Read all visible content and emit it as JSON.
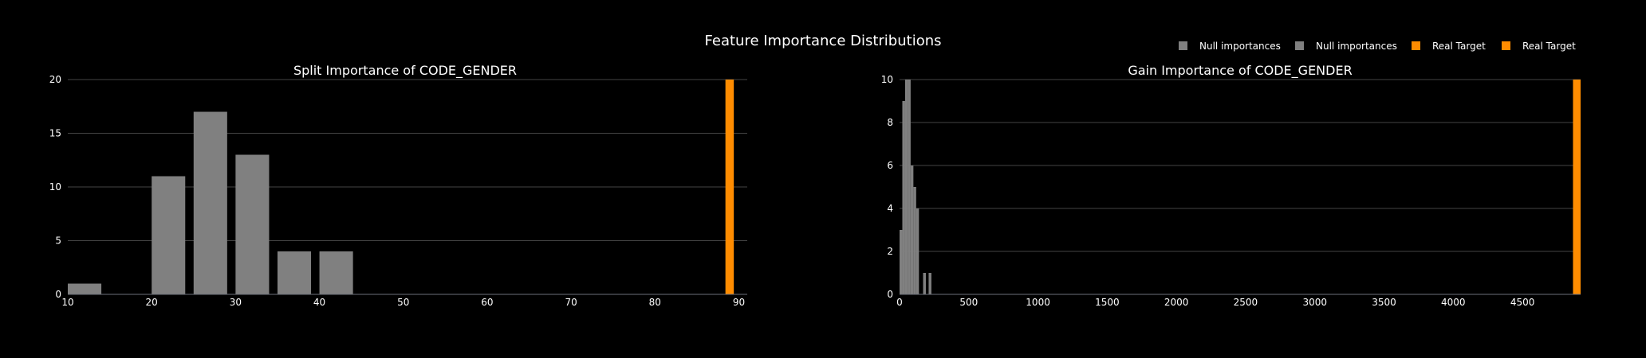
{
  "figure": {
    "title": "Feature Importance Distributions"
  },
  "legend": [
    {
      "label": "Null importances",
      "color": "#808080"
    },
    {
      "label": "Null importances",
      "color": "#808080"
    },
    {
      "label": "Real Target",
      "color": "#ff8c00"
    },
    {
      "label": "Real Target",
      "color": "#ff8c00"
    }
  ],
  "chart_data": [
    {
      "type": "bar",
      "title": "Split Importance of CODE_GENDER",
      "xlabel": "",
      "ylabel": "",
      "xlim": [
        10,
        91
      ],
      "ylim": [
        0,
        20
      ],
      "xticks": [
        10,
        20,
        30,
        40,
        50,
        60,
        70,
        80,
        90
      ],
      "yticks": [
        0,
        5,
        10,
        15,
        20
      ],
      "grid": true,
      "series": [
        {
          "name": "Null importances",
          "color": "#808080",
          "bins": [
            {
              "x0": 10,
              "x1": 14,
              "count": 1
            },
            {
              "x0": 20,
              "x1": 24,
              "count": 11
            },
            {
              "x0": 25,
              "x1": 29,
              "count": 17
            },
            {
              "x0": 30,
              "x1": 34,
              "count": 13
            },
            {
              "x0": 35,
              "x1": 39,
              "count": 4
            },
            {
              "x0": 40,
              "x1": 44,
              "count": 4
            }
          ]
        },
        {
          "name": "Real Target",
          "color": "#ff8c00",
          "bins": [
            {
              "x0": 88.4,
              "x1": 89.4,
              "count": 20
            }
          ]
        }
      ]
    },
    {
      "type": "bar",
      "title": "Gain Importance of CODE_GENDER",
      "xlabel": "",
      "ylabel": "",
      "xlim": [
        0,
        4920
      ],
      "ylim": [
        0,
        10
      ],
      "xticks": [
        0,
        500,
        1000,
        1500,
        2000,
        2500,
        3000,
        3500,
        4000,
        4500
      ],
      "yticks": [
        0,
        2,
        4,
        6,
        8,
        10
      ],
      "grid": true,
      "series": [
        {
          "name": "Null importances",
          "color": "#808080",
          "bins": [
            {
              "x0": 0,
              "x1": 20,
              "count": 3
            },
            {
              "x0": 20,
              "x1": 40,
              "count": 9
            },
            {
              "x0": 40,
              "x1": 60,
              "count": 10
            },
            {
              "x0": 60,
              "x1": 80,
              "count": 10
            },
            {
              "x0": 80,
              "x1": 100,
              "count": 6
            },
            {
              "x0": 100,
              "x1": 120,
              "count": 5
            },
            {
              "x0": 120,
              "x1": 140,
              "count": 4
            },
            {
              "x0": 170,
              "x1": 190,
              "count": 1
            },
            {
              "x0": 210,
              "x1": 230,
              "count": 1
            }
          ]
        },
        {
          "name": "Real Target",
          "color": "#ff8c00",
          "bins": [
            {
              "x0": 4865,
              "x1": 4920,
              "count": 10
            }
          ]
        }
      ]
    }
  ]
}
